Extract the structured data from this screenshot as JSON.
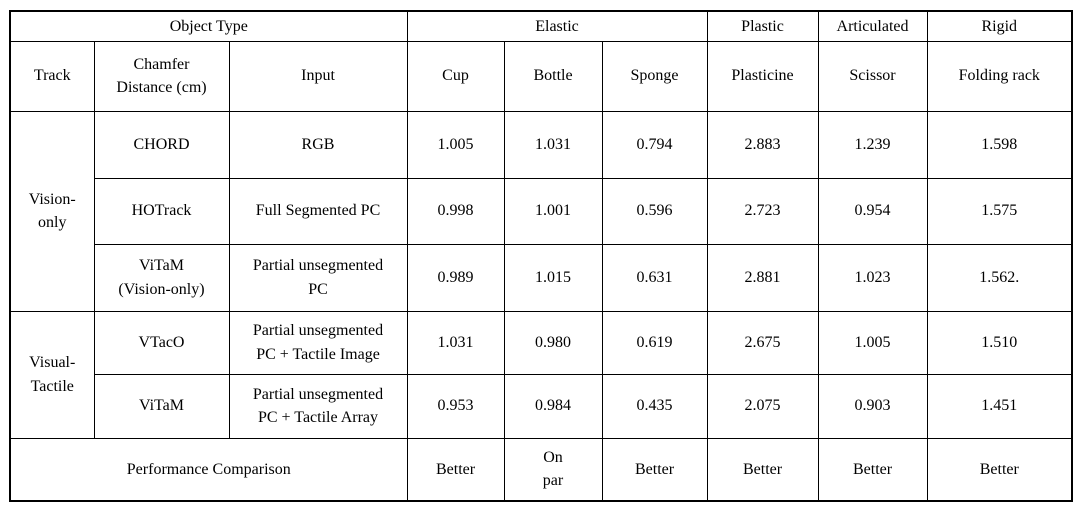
{
  "table": {
    "header_row1": {
      "object_type": "Object Type",
      "elastic": "Elastic",
      "plastic": "Plastic",
      "articulated": "Articulated",
      "rigid": "Rigid"
    },
    "header_row2": {
      "track": "Track",
      "chamfer": "Chamfer\nDistance (cm)",
      "input": "Input",
      "objects": [
        "Cup",
        "Bottle",
        "Sponge",
        "Plasticine",
        "Scissor",
        "Folding rack"
      ]
    },
    "groups": [
      {
        "label": "Vision-\nonly",
        "rows": [
          {
            "method": "CHORD",
            "input": "RGB",
            "values": [
              "1.005",
              "1.031",
              "0.794",
              "2.883",
              "1.239",
              "1.598"
            ]
          },
          {
            "method": "HOTrack",
            "input": "Full Segmented PC",
            "values": [
              "0.998",
              "1.001",
              "0.596",
              "2.723",
              "0.954",
              "1.575"
            ]
          },
          {
            "method": "ViTaM\n(Vision-only)",
            "input": "Partial unsegmented\nPC",
            "values": [
              "0.989",
              "1.015",
              "0.631",
              "2.881",
              "1.023",
              "1.562."
            ]
          }
        ]
      },
      {
        "label": "Visual-\nTactile",
        "rows": [
          {
            "method": "VTacO",
            "input": "Partial unsegmented\nPC + Tactile Image",
            "values": [
              "1.031",
              "0.980",
              "0.619",
              "2.675",
              "1.005",
              "1.510"
            ]
          },
          {
            "method": "ViTaM",
            "input": "Partial unsegmented\nPC + Tactile Array",
            "values": [
              "0.953",
              "0.984",
              "0.435",
              "2.075",
              "0.903",
              "1.451"
            ]
          }
        ]
      }
    ],
    "footer": {
      "label": "Performance Comparison",
      "values": [
        "Better",
        "On\npar",
        "Better",
        "Better",
        "Better",
        "Better"
      ]
    }
  }
}
